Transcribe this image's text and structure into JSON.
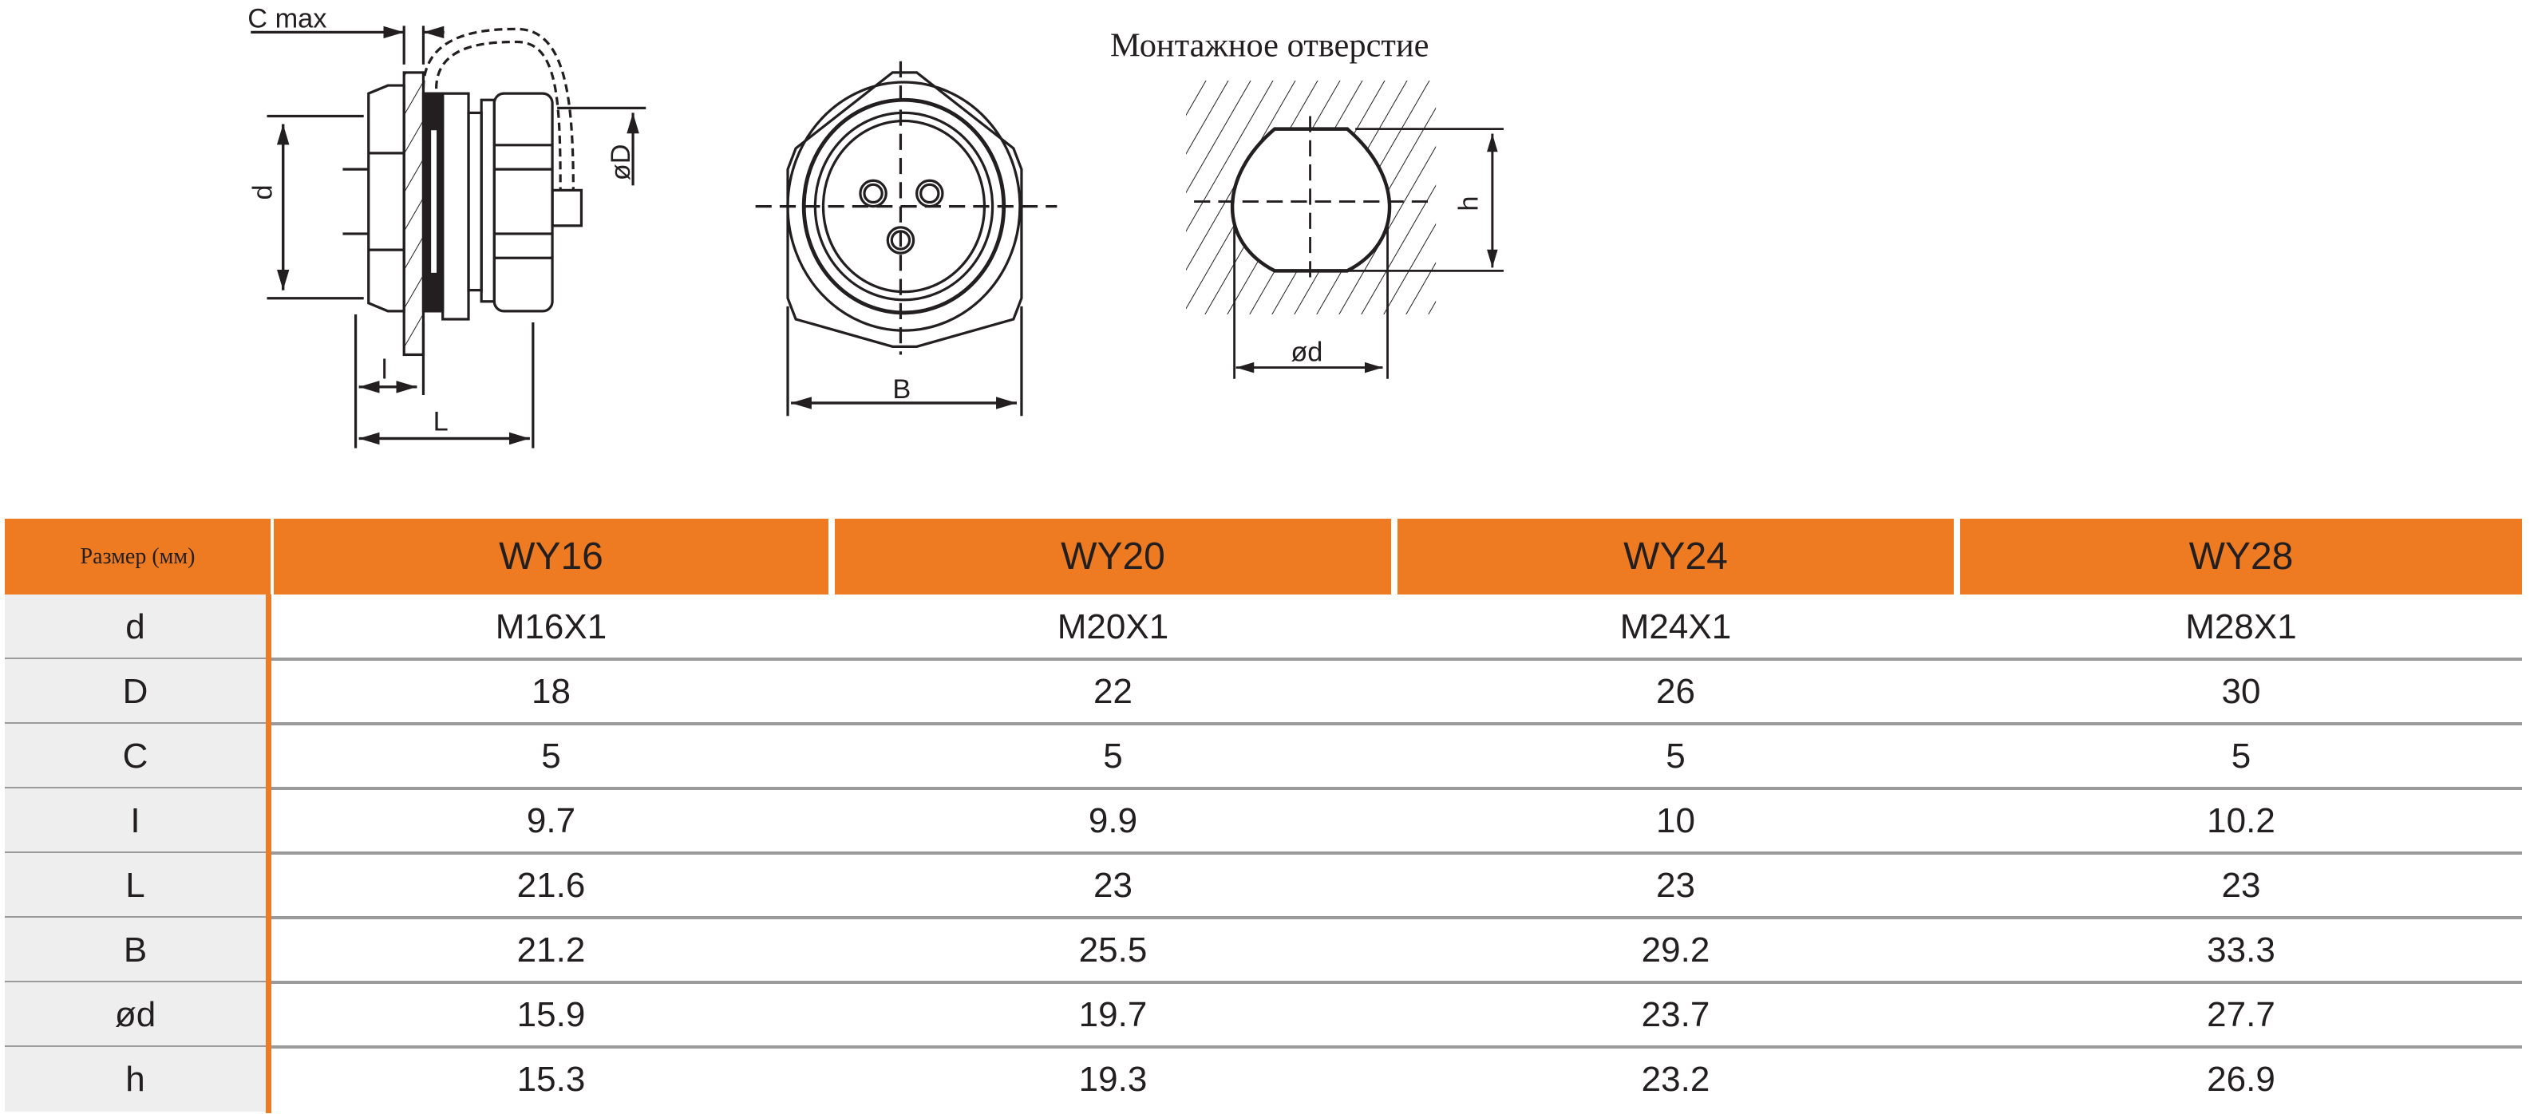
{
  "drawing": {
    "side_view": {
      "c_max_label": "C max",
      "d_label": "d",
      "D_label": "øD",
      "l_label": "l",
      "L_label": "L"
    },
    "front_view": {
      "B_label": "B"
    },
    "mounting_hole": {
      "title": "Монтажное отверстие",
      "h_label": "h",
      "d_label": "ød"
    }
  },
  "table": {
    "corner_header": "Размер (мм)",
    "columns": [
      "WY16",
      "WY20",
      "WY24",
      "WY28"
    ],
    "rows": [
      {
        "param": "d",
        "values": [
          "M16X1",
          "M20X1",
          "M24X1",
          "M28X1"
        ]
      },
      {
        "param": "D",
        "values": [
          "18",
          "22",
          "26",
          "30"
        ]
      },
      {
        "param": "C",
        "values": [
          "5",
          "5",
          "5",
          "5"
        ]
      },
      {
        "param": "I",
        "values": [
          "9.7",
          "9.9",
          "10",
          "10.2"
        ]
      },
      {
        "param": "L",
        "values": [
          "21.6",
          "23",
          "23",
          "23"
        ]
      },
      {
        "param": "B",
        "values": [
          "21.2",
          "25.5",
          "29.2",
          "33.3"
        ]
      },
      {
        "param": "ød",
        "values": [
          "15.9",
          "19.7",
          "23.7",
          "27.7"
        ]
      },
      {
        "param": "h",
        "values": [
          "15.3",
          "19.3",
          "23.2",
          "26.9"
        ]
      }
    ],
    "colors": {
      "header": "#ee7b21",
      "param_column": "#eeeeee",
      "separator": "#9a9a9a"
    }
  }
}
